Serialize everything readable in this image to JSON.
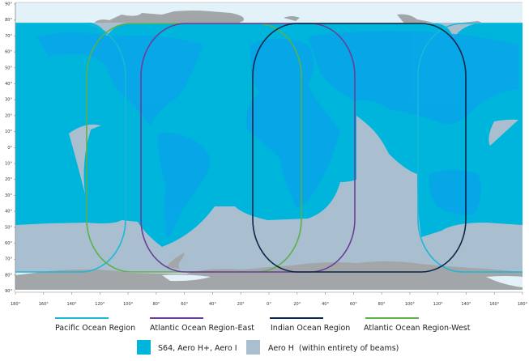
{
  "map": {
    "lat_labels": [
      "90°",
      "80°",
      "70°",
      "60°",
      "50°",
      "40°",
      "30°",
      "20°",
      "10°",
      "0°",
      "10°",
      "20°",
      "30°",
      "40°",
      "50°",
      "60°",
      "70°",
      "80°",
      "90°"
    ],
    "lon_labels": [
      "180°",
      "160°",
      "140°",
      "120°",
      "100°",
      "80°",
      "60°",
      "40°",
      "20°",
      "0°",
      "20°",
      "40°",
      "60°",
      "80°",
      "100°",
      "120°",
      "140°",
      "160°",
      "180°"
    ],
    "colors": {
      "ocean_background": "#e3f1f9",
      "land": "#a3a6a9",
      "coverage_s64": "#00b5dc",
      "coverage_aero_h": "#a9bfd0",
      "continent_overlay": "#08a4ea"
    }
  },
  "regions": [
    {
      "label": "Pacific Ocean Region",
      "color": "#1ab7d8"
    },
    {
      "label": "Atlantic Ocean Region-East",
      "color": "#6b3e98"
    },
    {
      "label": "Indian Ocean Region",
      "color": "#0b2747"
    },
    {
      "label": "Atlantic Ocean Region-West",
      "color": "#5cb04c"
    }
  ],
  "coverage_legend": [
    {
      "label": "S64, Aero H+, Aero I",
      "color": "#00b5dc"
    },
    {
      "label": "Aero H  (within entirety of beams)",
      "color": "#a9bfd0"
    }
  ]
}
